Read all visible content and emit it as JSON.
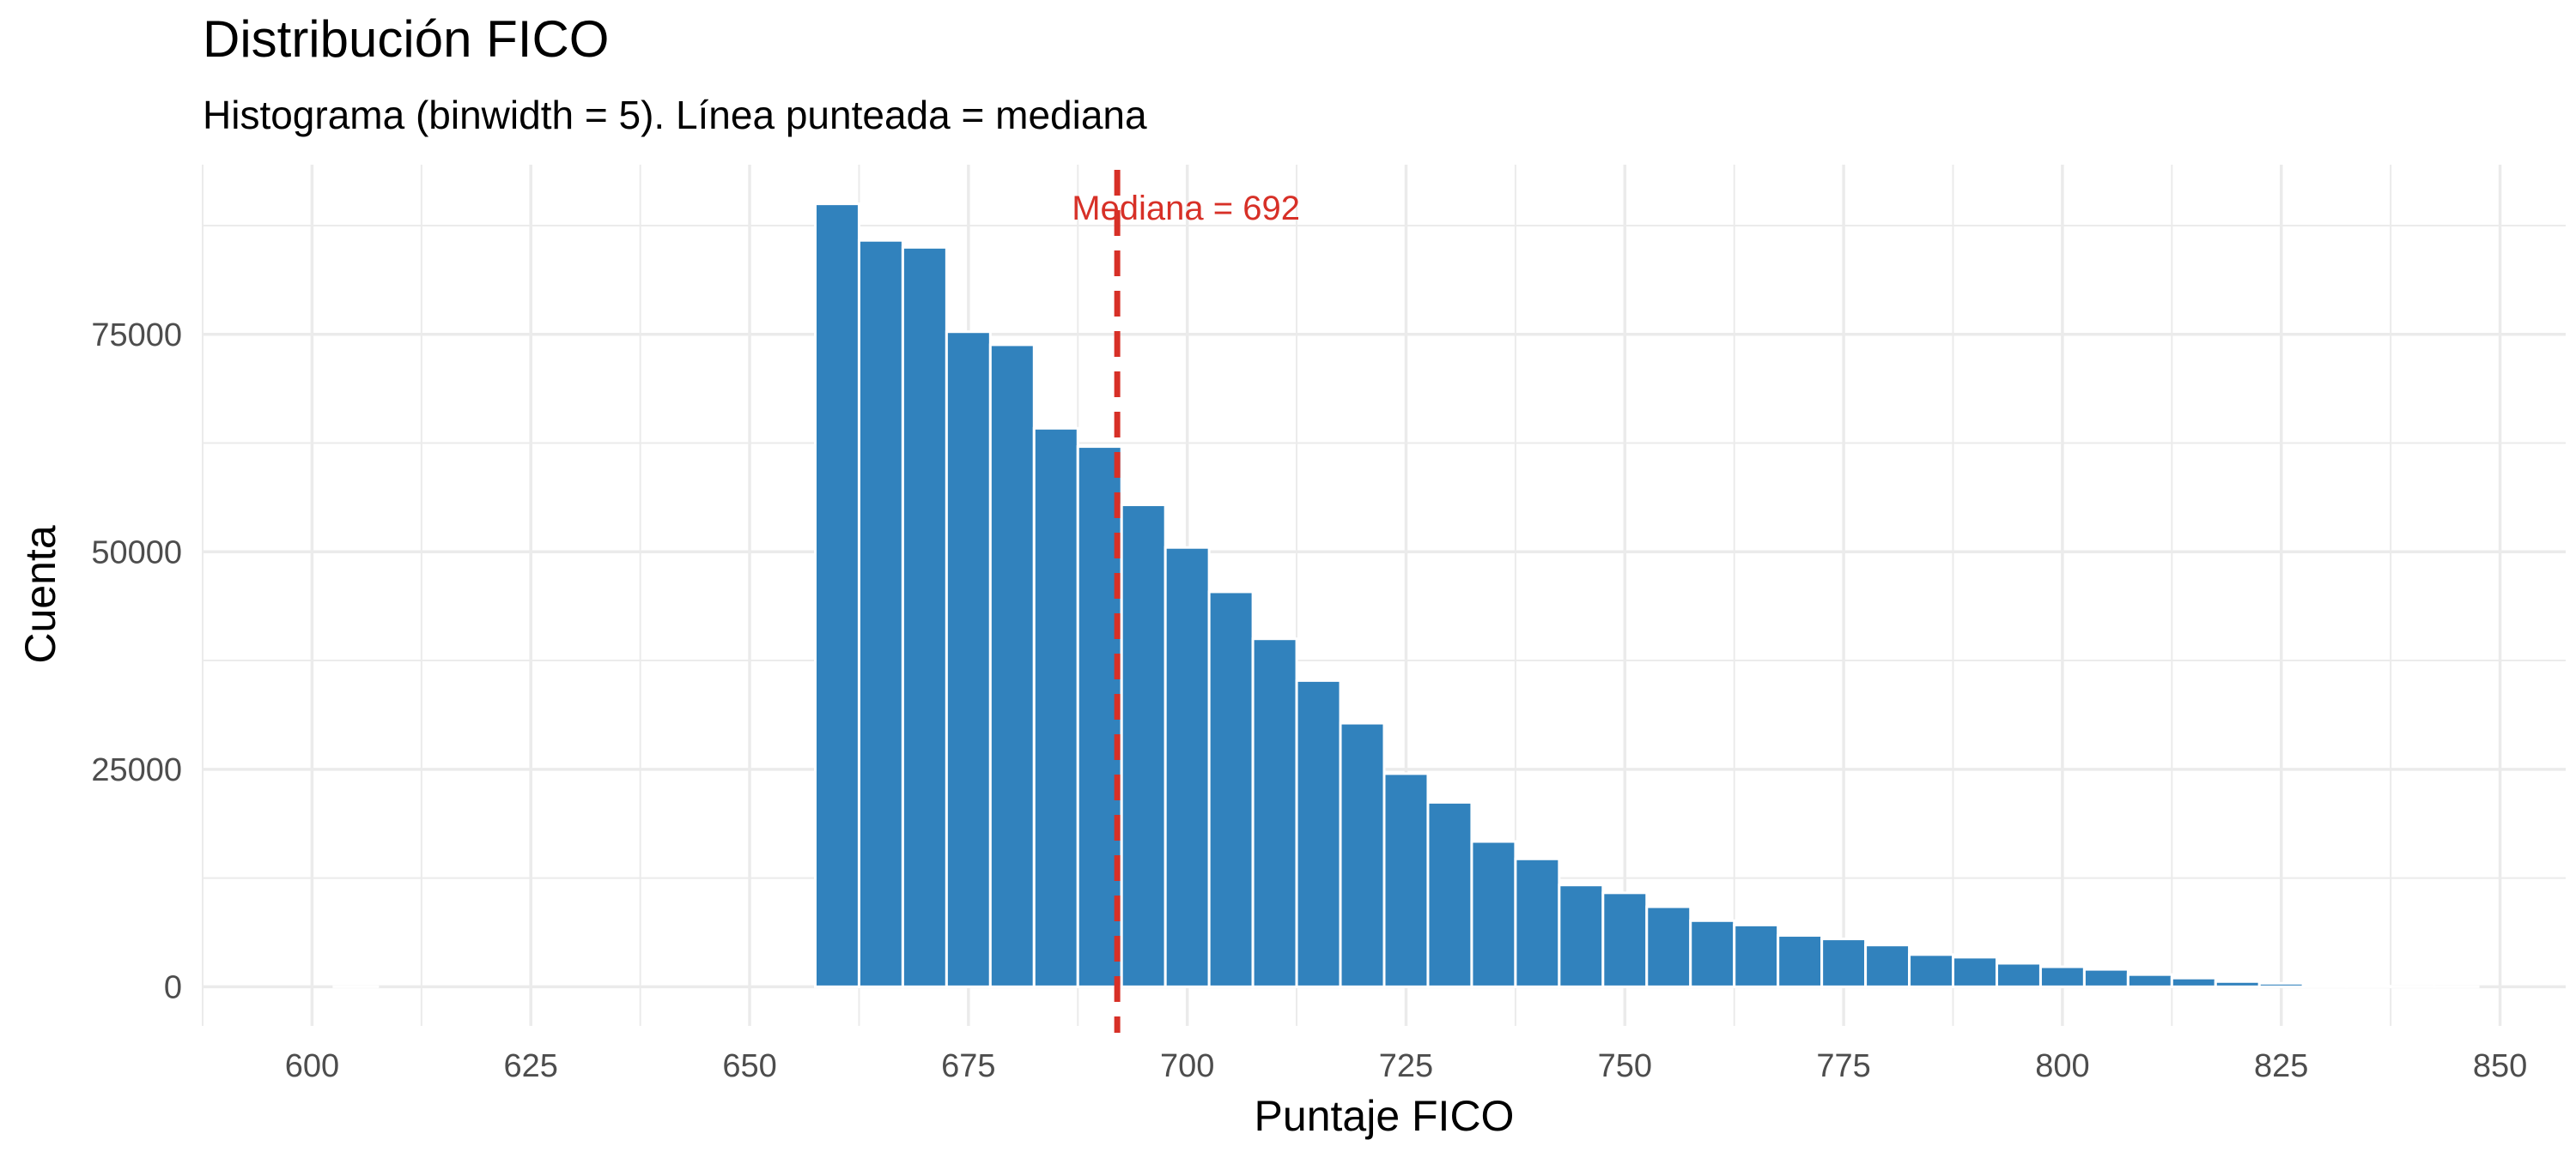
{
  "chart_data": {
    "type": "bar",
    "title": "Distribución FICO",
    "subtitle": "Histograma (binwidth = 5). Línea punteada = mediana",
    "xlabel": "Puntaje FICO",
    "ylabel": "Cuenta",
    "xlim": [
      587.5,
      857.5
    ],
    "ylim": [
      -4500,
      94500
    ],
    "x_ticks": [
      600,
      625,
      650,
      675,
      700,
      725,
      750,
      775,
      800,
      825,
      850
    ],
    "y_ticks": [
      0,
      25000,
      50000,
      75000
    ],
    "binwidth": 5,
    "bin_centers": [
      600,
      605,
      610,
      615,
      620,
      625,
      630,
      635,
      640,
      645,
      650,
      655,
      660,
      665,
      670,
      675,
      680,
      685,
      690,
      695,
      700,
      705,
      710,
      715,
      720,
      725,
      730,
      735,
      740,
      745,
      750,
      755,
      760,
      765,
      770,
      775,
      780,
      785,
      790,
      795,
      800,
      805,
      810,
      815,
      820,
      825,
      830,
      835,
      840,
      845,
      850
    ],
    "counts": [
      0,
      10,
      0,
      0,
      0,
      0,
      0,
      0,
      0,
      0,
      0,
      0,
      90000,
      85800,
      85000,
      75300,
      73800,
      64200,
      62100,
      55400,
      50500,
      45400,
      40000,
      35200,
      30300,
      24500,
      21200,
      16700,
      14700,
      11700,
      10800,
      9200,
      7600,
      7100,
      5900,
      5500,
      4800,
      3700,
      3400,
      2700,
      2300,
      2000,
      1400,
      1000,
      600,
      400,
      100,
      50,
      20,
      10,
      0
    ],
    "bar_color": "#3182bd",
    "median": 692,
    "median_label": "Mediana = 692",
    "median_color": "#d73027",
    "grid": true,
    "legend": "none"
  }
}
